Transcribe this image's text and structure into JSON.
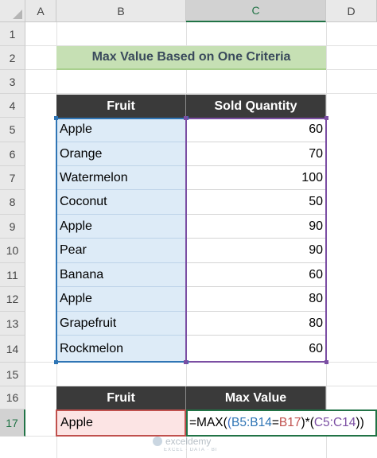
{
  "columns": [
    "A",
    "B",
    "C",
    "D"
  ],
  "rows": [
    "1",
    "2",
    "3",
    "4",
    "5",
    "6",
    "7",
    "8",
    "9",
    "10",
    "11",
    "12",
    "13",
    "14",
    "15",
    "16",
    "17"
  ],
  "title": "Max Value Based on One Criteria",
  "table": {
    "headers": [
      "Fruit",
      "Sold  Quantity"
    ],
    "rows": [
      {
        "fruit": "Apple",
        "qty": "60"
      },
      {
        "fruit": "Orange",
        "qty": "70"
      },
      {
        "fruit": "Watermelon",
        "qty": "100"
      },
      {
        "fruit": "Coconut",
        "qty": "50"
      },
      {
        "fruit": "Apple",
        "qty": "90"
      },
      {
        "fruit": "Pear",
        "qty": "90"
      },
      {
        "fruit": "Banana",
        "qty": "60"
      },
      {
        "fruit": "Apple",
        "qty": "80"
      },
      {
        "fruit": "Grapefruit",
        "qty": "80"
      },
      {
        "fruit": "Rockmelon",
        "qty": "60"
      }
    ]
  },
  "result": {
    "headers": [
      "Fruit",
      "Max Value"
    ],
    "criteria": "Apple",
    "formula": {
      "p1": "=MAX(",
      "p2": "(",
      "p3": "B5:B14",
      "p4": "=",
      "p5": "B17",
      "p6": ")*(",
      "p7": "C5:C14",
      "p8": "))"
    }
  },
  "watermark": {
    "name": "exceldemy",
    "tagline": "EXCEL · DATA · BI"
  },
  "colors": {
    "header_bg": "#3a3a3a",
    "title_bg": "#c6e0b4",
    "range_blue": "#2f75b5",
    "range_purple": "#7b4ea3",
    "ref_red": "#c0504d",
    "active_green": "#217346"
  }
}
